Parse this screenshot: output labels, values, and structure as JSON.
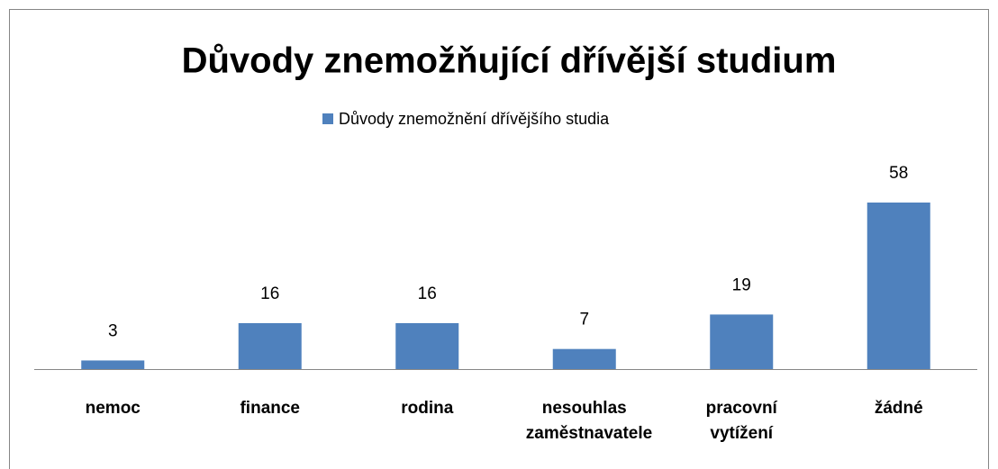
{
  "chart_data": {
    "type": "bar",
    "title": "Důvody znemožňující dřívější studium",
    "categories": [
      "nemoc",
      "finance",
      "rodina",
      "nesouhlas zaměstnavatele",
      "pracovní vytížení",
      "žádné"
    ],
    "series": [
      {
        "name": "Důvody znemožnění dřívějšího studia",
        "color": "#4f81bd",
        "values": [
          3,
          16,
          16,
          7,
          19,
          58
        ]
      }
    ],
    "legend": "top"
  }
}
